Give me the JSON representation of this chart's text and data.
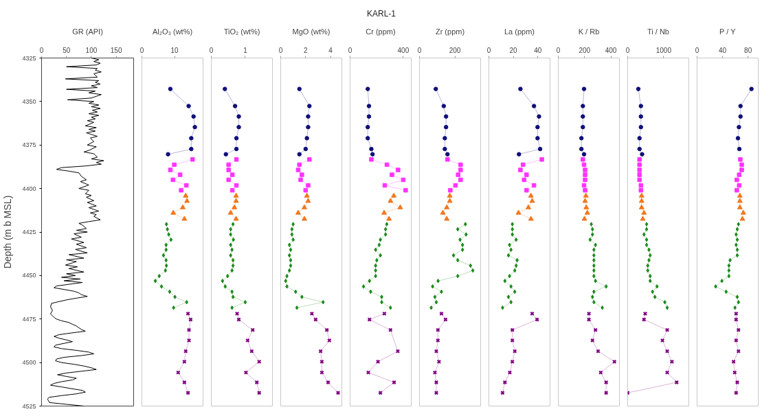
{
  "chart_data": [
    {
      "type": "other",
      "title": "KARL-1"
    },
    {
      "type": "line",
      "xlabel": "GR (API)",
      "ylabel": "Depth (m b MSL)",
      "xlim": [
        0,
        185
      ],
      "xticks": [
        0,
        50,
        100,
        150
      ],
      "ylim": [
        4525,
        4325
      ],
      "yticks": [
        4325,
        4350,
        4375,
        4400,
        4425,
        4450,
        4475,
        4500,
        4525
      ],
      "series": [
        {
          "color": "#000000",
          "marker": "none",
          "x": [
            100,
            115,
            105,
            118,
            110,
            50,
            112,
            108,
            120,
            105,
            112,
            48,
            115,
            108,
            118,
            100,
            112,
            50,
            108,
            95,
            120,
            110,
            100,
            52,
            105,
            95,
            115,
            100,
            118,
            102,
            112,
            95,
            115,
            100,
            108,
            92,
            105,
            88,
            110,
            95,
            108,
            90,
            112,
            98,
            105,
            92,
            110,
            96,
            85,
            105,
            112,
            100,
            125,
            110,
            120,
            90,
            40,
            30,
            55,
            75,
            80,
            90,
            78,
            95,
            85,
            75,
            95,
            88,
            100,
            90,
            105,
            92,
            110,
            95,
            115,
            98,
            110,
            105,
            118,
            95,
            75,
            82,
            90,
            70,
            92,
            65,
            80,
            60,
            85,
            70,
            90,
            68,
            92,
            55,
            85,
            50,
            70,
            48,
            72,
            55,
            85,
            50,
            68,
            40,
            78,
            45,
            82,
            30,
            25,
            45,
            65,
            75,
            80,
            92,
            70,
            50,
            35,
            20,
            18,
            22,
            18,
            25,
            30,
            40,
            55,
            62,
            70,
            75,
            80,
            88,
            60,
            35,
            25,
            35,
            50,
            62,
            45,
            28,
            25,
            40,
            70,
            95,
            105,
            80,
            45,
            30,
            28,
            40,
            65,
            85,
            100,
            110,
            80,
            50,
            32,
            50,
            70,
            62,
            40,
            25,
            18,
            40,
            60,
            82,
            88,
            70,
            40,
            15,
            12,
            14,
            16,
            50,
            85
          ],
          "values": [
            4325,
            4326,
            4327,
            4328,
            4329,
            4330,
            4331,
            4332,
            4333,
            4334,
            4336,
            4337,
            4338,
            4339,
            4340,
            4341,
            4342,
            4343,
            4344,
            4345,
            4346,
            4347,
            4348,
            4349,
            4350,
            4351,
            4352,
            4353,
            4354,
            4355,
            4356,
            4357,
            4358,
            4359,
            4360,
            4361,
            4362,
            4364,
            4365,
            4366,
            4367,
            4368,
            4370,
            4371,
            4373,
            4375,
            4376,
            4378,
            4379,
            4380,
            4382,
            4383,
            4384,
            4385,
            4386,
            4387,
            4388,
            4389,
            4390,
            4391,
            4393,
            4395,
            4396,
            4398,
            4399,
            4400,
            4401,
            4403,
            4404,
            4405,
            4407,
            4408,
            4410,
            4411,
            4413,
            4414,
            4415,
            4416,
            4418,
            4419,
            4420,
            4421,
            4423,
            4424,
            4425,
            4426,
            4428,
            4429,
            4431,
            4432,
            4434,
            4435,
            4437,
            4438,
            4440,
            4441,
            4442,
            4444,
            4445,
            4446,
            4448,
            4449,
            4450,
            4451,
            4452,
            4453,
            4454,
            4456,
            4457,
            4458,
            4459,
            4460,
            4461,
            4462,
            4463,
            4464,
            4465,
            4466,
            4468,
            4470,
            4472,
            4474,
            4475,
            4476,
            4477,
            4478,
            4479,
            4480,
            4481,
            4482,
            4483,
            4484,
            4485,
            4486,
            4487,
            4488,
            4489,
            4490,
            4491,
            4492,
            4493,
            4494,
            4495,
            4496,
            4497,
            4498,
            4499,
            4500,
            4501,
            4502,
            4503,
            4504,
            4505,
            4506,
            4507,
            4508,
            4509,
            4510,
            4511,
            4512,
            4513,
            4514,
            4515,
            4516,
            4517,
            4518,
            4519,
            4520,
            4521,
            4522,
            4523,
            4524,
            4525
          ]
        }
      ]
    },
    {
      "type": "line",
      "xlabel": "Al₂O₃ (wt%)",
      "xlim": [
        0,
        18.7
      ],
      "xticks": [
        0,
        10
      ],
      "ylim": [
        4525,
        4325
      ],
      "tick_labels": "x",
      "series": [
        {
          "color": "#10107a",
          "marker": "circle",
          "x": [
            8.7,
            14.3,
            15.8,
            16.2,
            15.1,
            15.1,
            8.0
          ],
          "values": [
            4342.8,
            4352.6,
            4358.6,
            4364.7,
            4371.1,
            4377.3,
            4380.3
          ]
        },
        {
          "color": "#ff33ff",
          "marker": "square",
          "x": [
            15.5,
            9.9,
            8.7,
            11.7,
            9.5,
            13.6,
            12.0
          ],
          "values": [
            4383.3,
            4386.3,
            4389.3,
            4392.1,
            4395.0,
            4398.2,
            4401.0
          ]
        },
        {
          "color": "#f07820",
          "marker": "triangle",
          "x": [
            13.4,
            13.8,
            12.5,
            9.6,
            13.0
          ],
          "values": [
            4404.2,
            4407.2,
            4410.9,
            4414.0,
            4417.5
          ]
        },
        {
          "color": "#1e8a1e",
          "marker": "diamond",
          "x": [
            7.5,
            7.8,
            8.2,
            8.9,
            7.4,
            7.4,
            6.6,
            7.4,
            7.5,
            7.2,
            5.3,
            4.1,
            6.0,
            8.5,
            10.1,
            13.7,
            9.7
          ],
          "values": [
            4420.5,
            4423.4,
            4426.4,
            4429.4,
            4432.4,
            4435.2,
            4438.4,
            4441.2,
            4444.3,
            4447.1,
            4450.3,
            4453.1,
            4456.3,
            4459.3,
            4462.3,
            4465.3,
            4468.5
          ]
        },
        {
          "color": "#800080",
          "marker": "cross",
          "x": [
            14.1,
            14.9,
            14.4,
            14.4,
            13.4,
            13.0,
            11.1,
            13.0,
            14.1
          ],
          "values": [
            4471.9,
            4475.3,
            4481.3,
            4487.3,
            4493.5,
            4499.5,
            4505.7,
            4511.4,
            4517.4
          ]
        }
      ]
    },
    {
      "type": "line",
      "xlabel": "TiO₂ (wt%)",
      "xlim": [
        0,
        1.8
      ],
      "xticks": [
        0,
        1
      ],
      "ylim": [
        4525,
        4325
      ],
      "tick_labels": "x",
      "series": [
        {
          "color": "#10107a",
          "marker": "circle",
          "x": [
            0.4,
            0.7,
            0.81,
            0.81,
            0.74,
            0.74,
            0.43
          ],
          "values": [
            4342.8,
            4352.6,
            4358.6,
            4364.7,
            4371.1,
            4377.3,
            4380.3
          ]
        },
        {
          "color": "#ff33ff",
          "marker": "square",
          "x": [
            0.74,
            0.51,
            0.51,
            0.62,
            0.51,
            0.74,
            0.62
          ],
          "values": [
            4383.3,
            4386.3,
            4389.3,
            4392.1,
            4395.0,
            4398.2,
            4401.0
          ]
        },
        {
          "color": "#f07820",
          "marker": "triangle",
          "x": [
            0.73,
            0.73,
            0.68,
            0.57,
            0.73
          ],
          "values": [
            4404.2,
            4407.2,
            4410.9,
            4414.0,
            4417.5
          ]
        },
        {
          "color": "#1e8a1e",
          "marker": "diamond",
          "x": [
            0.64,
            0.57,
            0.57,
            0.65,
            0.57,
            0.61,
            0.57,
            0.64,
            0.64,
            0.61,
            0.48,
            0.33,
            0.41,
            0.61,
            0.64,
            1.0,
            0.61
          ],
          "values": [
            4420.5,
            4423.4,
            4426.4,
            4429.4,
            4432.4,
            4435.2,
            4438.4,
            4441.2,
            4444.3,
            4447.1,
            4450.3,
            4453.1,
            4456.3,
            4459.3,
            4462.3,
            4465.3,
            4468.5
          ]
        },
        {
          "color": "#800080",
          "marker": "cross",
          "x": [
            0.76,
            0.81,
            1.22,
            1.07,
            1.19,
            1.41,
            1.02,
            1.34,
            1.41
          ],
          "values": [
            4471.9,
            4475.3,
            4481.3,
            4487.3,
            4493.5,
            4499.5,
            4505.7,
            4511.4,
            4517.4
          ]
        }
      ]
    },
    {
      "type": "line",
      "xlabel": "MgO (wt%)",
      "xlim": [
        0,
        4.9
      ],
      "xticks": [
        0,
        2,
        4
      ],
      "ylim": [
        4525,
        4325
      ],
      "tick_labels": "x",
      "series": [
        {
          "color": "#10107a",
          "marker": "circle",
          "x": [
            1.5,
            2.3,
            2.2,
            2.2,
            2.1,
            2.0,
            1.5
          ],
          "values": [
            4342.8,
            4352.6,
            4358.6,
            4364.7,
            4371.1,
            4377.3,
            4380.3
          ]
        },
        {
          "color": "#ff33ff",
          "marker": "square",
          "x": [
            2.3,
            1.5,
            1.4,
            1.7,
            1.6,
            2.2,
            2.0
          ],
          "values": [
            4383.3,
            4386.3,
            4389.3,
            4392.1,
            4395.0,
            4398.2,
            4401.0
          ]
        },
        {
          "color": "#f07820",
          "marker": "triangle",
          "x": [
            2.1,
            2.2,
            1.9,
            1.4,
            1.9
          ],
          "values": [
            4404.2,
            4407.2,
            4410.9,
            4414.0,
            4417.5
          ]
        },
        {
          "color": "#1e8a1e",
          "marker": "diamond",
          "x": [
            1.0,
            0.9,
            0.9,
            1.0,
            0.7,
            0.8,
            0.7,
            0.8,
            0.8,
            0.7,
            0.5,
            0.4,
            0.5,
            1.2,
            1.7,
            3.4,
            1.3
          ],
          "values": [
            4420.5,
            4423.4,
            4426.4,
            4429.4,
            4432.4,
            4435.2,
            4438.4,
            4441.2,
            4444.3,
            4447.1,
            4450.3,
            4453.1,
            4456.3,
            4459.3,
            4462.3,
            4465.3,
            4468.5
          ]
        },
        {
          "color": "#800080",
          "marker": "cross",
          "x": [
            2.5,
            2.8,
            3.7,
            3.9,
            3.2,
            3.3,
            3.3,
            3.8,
            4.6
          ],
          "values": [
            4471.9,
            4475.3,
            4481.3,
            4487.3,
            4493.5,
            4499.5,
            4505.7,
            4511.4,
            4517.4
          ]
        }
      ]
    },
    {
      "type": "line",
      "xlabel": "Cr (ppm)",
      "xlim": [
        0,
        460
      ],
      "xticks": [
        0,
        400
      ],
      "ylim": [
        4525,
        4325
      ],
      "tick_labels": "x",
      "series": [
        {
          "color": "#10107a",
          "marker": "circle",
          "x": [
            133,
            142,
            142,
            133,
            133,
            160,
            169
          ],
          "values": [
            4342.8,
            4352.6,
            4358.6,
            4364.7,
            4371.1,
            4377.3,
            4380.3
          ]
        },
        {
          "color": "#ff33ff",
          "marker": "square",
          "x": [
            160,
            277,
            361,
            315,
            400,
            261,
            418
          ],
          "values": [
            4383.3,
            4386.3,
            4389.3,
            4392.1,
            4395.0,
            4398.2,
            4401.0
          ]
        },
        {
          "color": "#f07820",
          "marker": "triangle",
          "x": [
            329,
            304,
            377,
            256,
            293
          ],
          "values": [
            4404.2,
            4407.2,
            4410.9,
            4414.0,
            4417.5
          ]
        },
        {
          "color": "#1e8a1e",
          "marker": "diamond",
          "x": [
            276,
            267,
            267,
            228,
            219,
            192,
            228,
            201,
            192,
            192,
            192,
            146,
            101,
            155,
            238,
            238,
            304
          ],
          "values": [
            4420.5,
            4423.4,
            4426.4,
            4429.4,
            4432.4,
            4435.2,
            4438.4,
            4441.2,
            4444.3,
            4447.1,
            4450.3,
            4453.1,
            4456.3,
            4459.3,
            4462.3,
            4465.3,
            4468.5
          ]
        },
        {
          "color": "#800080",
          "marker": "cross",
          "x": [
            258,
            146,
            304,
            359,
            210,
            137,
            331,
            228
          ],
          "values": [
            4471.9,
            4475.3,
            4481.3,
            4493.5,
            4499.5,
            4505.7,
            4511.4,
            4517.4
          ]
        }
      ]
    },
    {
      "type": "line",
      "xlabel": "Zr (ppm)",
      "xlim": [
        0,
        345
      ],
      "xticks": [
        0,
        200
      ],
      "ylim": [
        4525,
        4325
      ],
      "tick_labels": "x",
      "series": [
        {
          "color": "#10107a",
          "marker": "circle",
          "x": [
            92,
            137,
            150,
            150,
            143,
            143,
            158
          ],
          "values": [
            4342.8,
            4352.6,
            4358.6,
            4364.7,
            4371.1,
            4377.3,
            4380.3
          ]
        },
        {
          "color": "#ff33ff",
          "marker": "square",
          "x": [
            158,
            232,
            232,
            218,
            232,
            203,
            174
          ],
          "values": [
            4383.3,
            4386.3,
            4389.3,
            4392.1,
            4395.0,
            4398.2,
            4401.0
          ]
        },
        {
          "color": "#f07820",
          "marker": "triangle",
          "x": [
            171,
            171,
            154,
            132,
            154
          ],
          "values": [
            4404.2,
            4407.2,
            4410.9,
            4414.0,
            4417.5
          ]
        },
        {
          "color": "#1e8a1e",
          "marker": "diamond",
          "x": [
            259,
            216,
            263,
            229,
            243,
            243,
            192,
            216,
            288,
            301,
            216,
            105,
            74,
            124,
            87,
            95,
            66
          ],
          "values": [
            4420.5,
            4423.4,
            4426.4,
            4429.4,
            4432.4,
            4435.2,
            4438.4,
            4441.2,
            4444.3,
            4447.1,
            4450.3,
            4453.1,
            4456.3,
            4459.3,
            4462.3,
            4465.3,
            4468.5
          ]
        },
        {
          "color": "#800080",
          "marker": "cross",
          "x": [
            124,
            147,
            104,
            104,
            95,
            110,
            87,
            95,
            95
          ],
          "values": [
            4471.9,
            4475.3,
            4481.3,
            4487.3,
            4493.5,
            4499.5,
            4505.7,
            4511.4,
            4517.4
          ]
        }
      ]
    },
    {
      "type": "line",
      "xlabel": "La (ppm)",
      "xlim": [
        0,
        50
      ],
      "xticks": [
        0,
        20,
        40
      ],
      "ylim": [
        4525,
        4325
      ],
      "tick_labels": "x",
      "series": [
        {
          "color": "#10107a",
          "marker": "circle",
          "x": [
            25.8,
            36.9,
            41.0,
            39.8,
            39.8,
            41.9,
            24.6
          ],
          "values": [
            4342.8,
            4352.6,
            4358.6,
            4364.7,
            4371.1,
            4377.3,
            4380.3
          ]
        },
        {
          "color": "#ff33ff",
          "marker": "square",
          "x": [
            43.3,
            27.9,
            25.8,
            30.8,
            28.8,
            36.9,
            30.8
          ],
          "values": [
            4383.3,
            4386.3,
            4389.3,
            4392.1,
            4395.0,
            4398.2,
            4401.0
          ]
        },
        {
          "color": "#f07820",
          "marker": "triangle",
          "x": [
            34.4,
            35.4,
            32.3,
            24.2,
            34.4
          ],
          "values": [
            4404.2,
            4407.2,
            4410.9,
            4414.0,
            4417.5
          ]
        },
        {
          "color": "#1e8a1e",
          "marker": "diamond",
          "x": [
            19.2,
            19.2,
            19.2,
            22.3,
            16.9,
            18.1,
            16.0,
            23.1,
            22.3,
            21.2,
            16.9,
            13.1,
            18.1,
            21.2,
            16.0,
            18.1,
            11.2
          ],
          "values": [
            4420.5,
            4423.4,
            4426.4,
            4429.4,
            4432.4,
            4435.2,
            4438.4,
            4441.2,
            4444.3,
            4447.1,
            4450.3,
            4453.1,
            4456.3,
            4459.3,
            4462.3,
            4465.3,
            4468.5
          ]
        },
        {
          "color": "#800080",
          "marker": "cross",
          "x": [
            35.4,
            39.4,
            19.2,
            19.2,
            21.2,
            19.2,
            17.1,
            13.1,
            11.2
          ],
          "values": [
            4471.9,
            4475.3,
            4481.3,
            4487.3,
            4493.5,
            4499.5,
            4505.7,
            4511.4,
            4517.4
          ]
        }
      ]
    },
    {
      "type": "line",
      "xlabel": "K / Rb",
      "xlim": [
        0,
        465
      ],
      "xticks": [
        0,
        200,
        400
      ],
      "ylim": [
        4525,
        4325
      ],
      "tick_labels": "x",
      "series": [
        {
          "color": "#10107a",
          "marker": "circle",
          "x": [
            196,
            187,
            187,
            187,
            176,
            176,
            196
          ],
          "values": [
            4342.8,
            4352.6,
            4358.6,
            4364.7,
            4371.1,
            4377.3,
            4380.3
          ]
        },
        {
          "color": "#ff33ff",
          "marker": "square",
          "x": [
            187,
            196,
            204,
            204,
            204,
            196,
            204
          ],
          "values": [
            4383.3,
            4386.3,
            4389.3,
            4392.1,
            4395.0,
            4398.2,
            4401.0
          ]
        },
        {
          "color": "#f07820",
          "marker": "triangle",
          "x": [
            210,
            204,
            213,
            221,
            199
          ],
          "values": [
            4404.2,
            4407.2,
            4410.9,
            4414.0,
            4417.5
          ]
        },
        {
          "color": "#1e8a1e",
          "marker": "diamond",
          "x": [
            251,
            260,
            260,
            242,
            283,
            271,
            271,
            271,
            271,
            271,
            271,
            283,
            364,
            271,
            260,
            271,
            335
          ],
          "values": [
            4420.5,
            4423.4,
            4426.4,
            4429.4,
            4432.4,
            4435.2,
            4438.4,
            4441.2,
            4444.3,
            4447.1,
            4450.3,
            4453.1,
            4456.3,
            4459.3,
            4462.3,
            4465.3,
            4468.5
          ]
        },
        {
          "color": "#800080",
          "marker": "cross",
          "x": [
            233,
            233,
            283,
            260,
            303,
            427,
            323,
            364,
            364
          ],
          "values": [
            4471.9,
            4475.3,
            4481.3,
            4487.3,
            4493.5,
            4499.5,
            4505.7,
            4511.4,
            4517.4
          ]
        }
      ]
    },
    {
      "type": "line",
      "xlabel": "Ti / Nb",
      "xlim": [
        0,
        1700
      ],
      "xticks": [
        0,
        1000
      ],
      "ylim": [
        4525,
        4325
      ],
      "tick_labels": "x",
      "series": [
        {
          "color": "#10107a",
          "marker": "circle",
          "x": [
            296,
            368,
            368,
            368,
            329,
            329,
            401
          ],
          "values": [
            4342.8,
            4352.6,
            4358.6,
            4364.7,
            4371.1,
            4377.3,
            4380.3
          ]
        },
        {
          "color": "#ff33ff",
          "marker": "square",
          "x": [
            329,
            329,
            329,
            329,
            329,
            368,
            368
          ],
          "values": [
            4383.3,
            4386.3,
            4389.3,
            4392.1,
            4395.0,
            4398.2,
            4401.0
          ]
        },
        {
          "color": "#f07820",
          "marker": "triangle",
          "x": [
            388,
            388,
            388,
            454,
            421
          ],
          "values": [
            4404.2,
            4407.2,
            4410.9,
            4414.0,
            4417.5
          ]
        },
        {
          "color": "#1e8a1e",
          "marker": "diamond",
          "x": [
            526,
            526,
            454,
            526,
            526,
            592,
            625,
            592,
            559,
            559,
            625,
            625,
            816,
            691,
            757,
            1033,
            1099
          ],
          "values": [
            4420.5,
            4423.4,
            4426.4,
            4429.4,
            4432.4,
            4435.2,
            4438.4,
            4441.2,
            4444.3,
            4447.1,
            4450.3,
            4453.1,
            4456.3,
            4459.3,
            4462.3,
            4465.3,
            4468.5
          ]
        },
        {
          "color": "#800080",
          "marker": "cross",
          "x": [
            487,
            454,
            1099,
            967,
            1099,
            1230,
            1099,
            1362,
            0
          ],
          "values": [
            4471.9,
            4475.3,
            4481.3,
            4487.3,
            4493.5,
            4499.5,
            4505.7,
            4511.4,
            4517.4
          ]
        }
      ]
    },
    {
      "type": "line",
      "xlabel": "P / Y",
      "xlim": [
        0,
        96
      ],
      "xticks": [
        0,
        40,
        80
      ],
      "ylim": [
        4525,
        4325
      ],
      "tick_labels": "x",
      "series": [
        {
          "color": "#10107a",
          "marker": "circle",
          "x": [
            85.4,
            68.2,
            68.2,
            65.7,
            64.2,
            66.4
          ],
          "values": [
            4342.8,
            4352.6,
            4358.6,
            4364.7,
            4371.1,
            4377.3
          ]
        },
        {
          "color": "#ff33ff",
          "marker": "square",
          "x": [
            67.9,
            70.1,
            70.1,
            66.1,
            62.4,
            66.1,
            62.4
          ],
          "values": [
            4383.3,
            4386.3,
            4389.3,
            4392.1,
            4395.0,
            4398.2,
            4401.0
          ]
        },
        {
          "color": "#f07820",
          "marker": "triangle",
          "x": [
            67.2,
            67.2,
            67.2,
            72.6,
            71.2
          ],
          "values": [
            4404.2,
            4407.2,
            4410.9,
            4414.0,
            4417.5
          ]
        },
        {
          "color": "#1e8a1e",
          "marker": "diamond",
          "x": [
            65.0,
            63.1,
            61.3,
            63.1,
            61.3,
            63.1,
            63.1,
            51.8,
            50.0,
            50.0,
            50.0,
            39.0,
            29.2,
            45.6,
            63.1,
            65.0,
            59.5
          ],
          "values": [
            4420.5,
            4423.4,
            4426.4,
            4429.4,
            4432.4,
            4435.2,
            4438.4,
            4441.2,
            4444.3,
            4447.1,
            4450.3,
            4453.1,
            4456.3,
            4459.3,
            4462.3,
            4465.3,
            4468.5
          ]
        },
        {
          "color": "#800080",
          "marker": "cross",
          "x": [
            61.3,
            61.3,
            65.0,
            61.3,
            65.0,
            57.3,
            59.1,
            63.1,
            61.3
          ],
          "values": [
            4471.9,
            4475.3,
            4481.3,
            4487.3,
            4493.5,
            4499.5,
            4505.7,
            4511.4,
            4517.4
          ]
        }
      ]
    }
  ]
}
